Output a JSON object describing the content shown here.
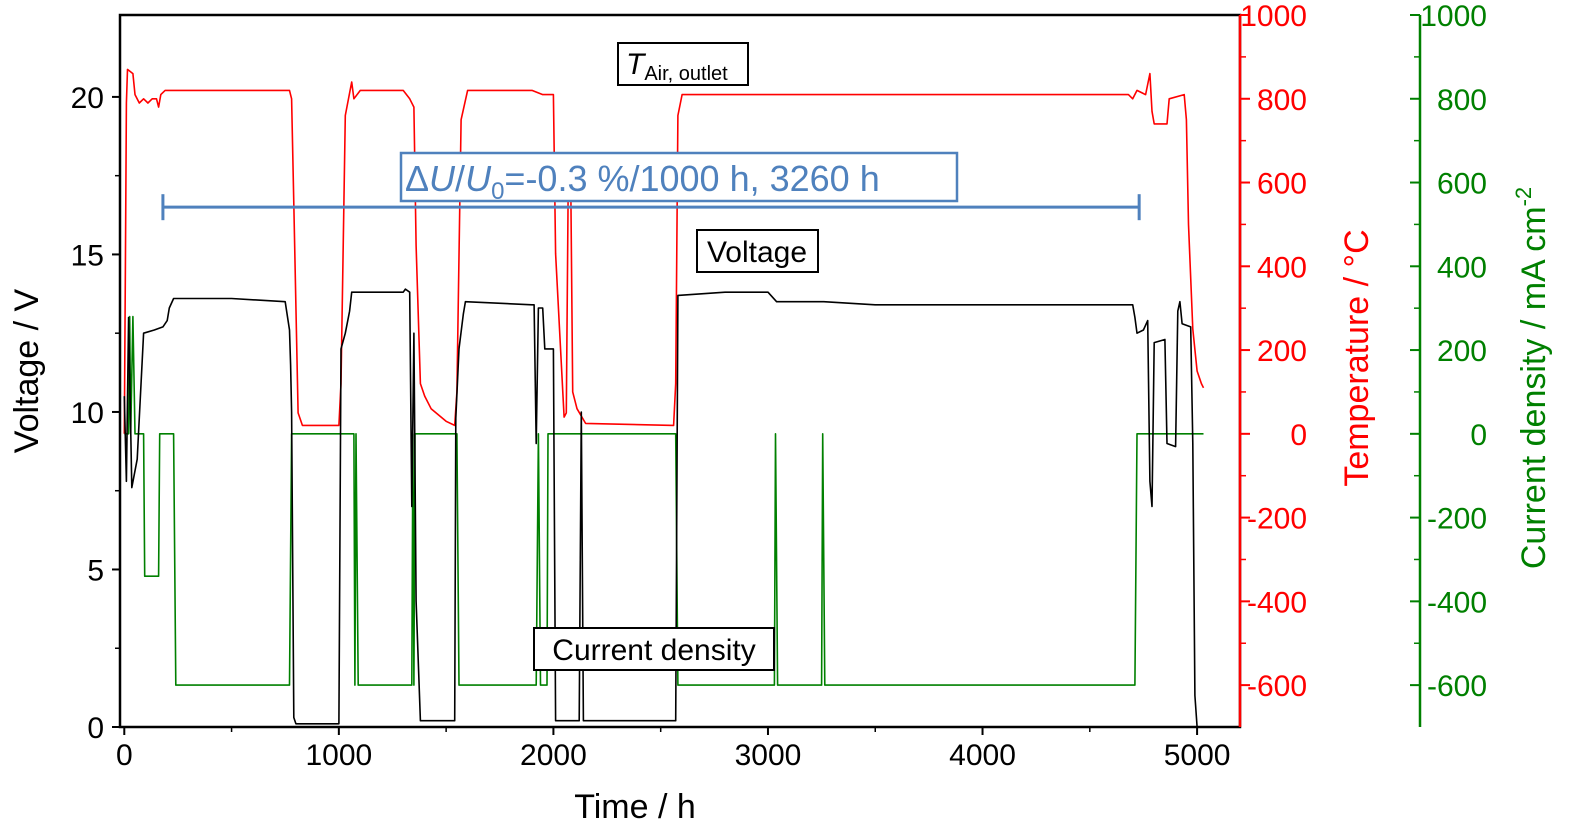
{
  "chart_data": {
    "type": "line",
    "x_axis": {
      "label": "Time / h",
      "range": [
        -20,
        5200
      ],
      "ticks": [
        0,
        1000,
        2000,
        3000,
        4000,
        5000
      ]
    },
    "y_axes": {
      "voltage": {
        "label": "Voltage / V",
        "range": [
          0,
          22.6
        ],
        "ticks": [
          0,
          5,
          10,
          15,
          20
        ],
        "color": "#000000"
      },
      "temperature": {
        "label": "Temperature / °C",
        "range": [
          -700,
          1000
        ],
        "ticks": [
          -600,
          -400,
          -200,
          0,
          200,
          400,
          600,
          800,
          1000
        ],
        "color": "#ff0000"
      },
      "current_density": {
        "label": "Current density / mA cm",
        "label_superscript": "-2",
        "range": [
          -700,
          1000
        ],
        "ticks": [
          -600,
          -400,
          -200,
          0,
          200,
          400,
          600,
          800,
          1000
        ],
        "color": "#008000"
      }
    },
    "series": [
      {
        "name": "Voltage",
        "axis": "voltage",
        "color": "#000000",
        "points": [
          [
            0,
            10.5
          ],
          [
            10,
            7.8
          ],
          [
            20,
            13
          ],
          [
            35,
            7.6
          ],
          [
            60,
            8.5
          ],
          [
            90,
            12.5
          ],
          [
            140,
            12.6
          ],
          [
            180,
            12.7
          ],
          [
            200,
            12.9
          ],
          [
            210,
            13.3
          ],
          [
            230,
            13.6
          ],
          [
            500,
            13.6
          ],
          [
            750,
            13.5
          ],
          [
            770,
            12.6
          ],
          [
            775,
            11.5
          ],
          [
            780,
            10
          ],
          [
            790,
            0.3
          ],
          [
            800,
            0.1
          ],
          [
            1000,
            0.1
          ],
          [
            1010,
            12
          ],
          [
            1030,
            12.5
          ],
          [
            1050,
            13.2
          ],
          [
            1060,
            13.8
          ],
          [
            1300,
            13.8
          ],
          [
            1310,
            13.9
          ],
          [
            1330,
            13.8
          ],
          [
            1340,
            7
          ],
          [
            1350,
            12.5
          ],
          [
            1360,
            4
          ],
          [
            1380,
            0.2
          ],
          [
            1540,
            0.2
          ],
          [
            1545,
            9.8
          ],
          [
            1560,
            12
          ],
          [
            1580,
            13.1
          ],
          [
            1590,
            13.5
          ],
          [
            1900,
            13.4
          ],
          [
            1910,
            13.4
          ],
          [
            1920,
            9
          ],
          [
            1930,
            13.3
          ],
          [
            1950,
            13.3
          ],
          [
            1960,
            12
          ],
          [
            2000,
            12
          ],
          [
            2010,
            0.2
          ],
          [
            2120,
            0.2
          ],
          [
            2130,
            10
          ],
          [
            2140,
            0.2
          ],
          [
            2570,
            0.2
          ],
          [
            2580,
            13.7
          ],
          [
            2800,
            13.8
          ],
          [
            3000,
            13.8
          ],
          [
            3040,
            13.5
          ],
          [
            3260,
            13.5
          ],
          [
            3500,
            13.4
          ],
          [
            4000,
            13.4
          ],
          [
            4700,
            13.4
          ],
          [
            4710,
            13
          ],
          [
            4720,
            12.5
          ],
          [
            4750,
            12.6
          ],
          [
            4770,
            12.9
          ],
          [
            4780,
            7.8
          ],
          [
            4790,
            7
          ],
          [
            4800,
            12.2
          ],
          [
            4850,
            12.3
          ],
          [
            4860,
            9
          ],
          [
            4900,
            8.9
          ],
          [
            4910,
            13.2
          ],
          [
            4920,
            13.5
          ],
          [
            4930,
            12.8
          ],
          [
            4970,
            12.7
          ],
          [
            4980,
            9
          ],
          [
            4990,
            1
          ],
          [
            5000,
            0
          ]
        ]
      },
      {
        "name": "T Air, outlet",
        "axis": "temperature",
        "color": "#ff0000",
        "points": [
          [
            0,
            0
          ],
          [
            5,
            400
          ],
          [
            10,
            790
          ],
          [
            15,
            870
          ],
          [
            40,
            860
          ],
          [
            50,
            810
          ],
          [
            70,
            790
          ],
          [
            90,
            800
          ],
          [
            110,
            790
          ],
          [
            130,
            800
          ],
          [
            150,
            800
          ],
          [
            160,
            780
          ],
          [
            170,
            810
          ],
          [
            190,
            820
          ],
          [
            250,
            820
          ],
          [
            500,
            820
          ],
          [
            770,
            820
          ],
          [
            780,
            800
          ],
          [
            790,
            550
          ],
          [
            810,
            50
          ],
          [
            830,
            20
          ],
          [
            1000,
            20
          ],
          [
            1010,
            120
          ],
          [
            1030,
            760
          ],
          [
            1060,
            840
          ],
          [
            1070,
            800
          ],
          [
            1100,
            820
          ],
          [
            1300,
            820
          ],
          [
            1330,
            800
          ],
          [
            1350,
            780
          ],
          [
            1360,
            450
          ],
          [
            1380,
            120
          ],
          [
            1400,
            90
          ],
          [
            1430,
            60
          ],
          [
            1500,
            30
          ],
          [
            1540,
            20
          ],
          [
            1550,
            100
          ],
          [
            1570,
            750
          ],
          [
            1600,
            820
          ],
          [
            1900,
            820
          ],
          [
            1950,
            810
          ],
          [
            2000,
            810
          ],
          [
            2010,
            430
          ],
          [
            2050,
            40
          ],
          [
            2060,
            50
          ],
          [
            2070,
            650
          ],
          [
            2080,
            640
          ],
          [
            2090,
            100
          ],
          [
            2110,
            60
          ],
          [
            2150,
            25
          ],
          [
            2560,
            20
          ],
          [
            2570,
            120
          ],
          [
            2580,
            760
          ],
          [
            2600,
            810
          ],
          [
            3000,
            810
          ],
          [
            3260,
            810
          ],
          [
            4000,
            810
          ],
          [
            4680,
            810
          ],
          [
            4700,
            800
          ],
          [
            4720,
            820
          ],
          [
            4760,
            810
          ],
          [
            4780,
            860
          ],
          [
            4790,
            770
          ],
          [
            4800,
            740
          ],
          [
            4860,
            740
          ],
          [
            4870,
            800
          ],
          [
            4940,
            810
          ],
          [
            4950,
            750
          ],
          [
            4960,
            500
          ],
          [
            4980,
            250
          ],
          [
            5000,
            150
          ],
          [
            5020,
            120
          ],
          [
            5030,
            110
          ]
        ]
      },
      {
        "name": "Current density",
        "axis": "current_density",
        "color": "#008000",
        "points": [
          [
            0,
            0
          ],
          [
            20,
            0
          ],
          [
            25,
            280
          ],
          [
            30,
            0
          ],
          [
            40,
            280
          ],
          [
            50,
            0
          ],
          [
            90,
            0
          ],
          [
            95,
            -340
          ],
          [
            160,
            -340
          ],
          [
            165,
            0
          ],
          [
            230,
            0
          ],
          [
            240,
            -600
          ],
          [
            770,
            -600
          ],
          [
            780,
            0
          ],
          [
            1010,
            0
          ],
          [
            1070,
            0
          ],
          [
            1075,
            -600
          ],
          [
            1080,
            0
          ],
          [
            1090,
            -600
          ],
          [
            1340,
            -600
          ],
          [
            1345,
            0
          ],
          [
            1350,
            -600
          ],
          [
            1355,
            0
          ],
          [
            1550,
            0
          ],
          [
            1560,
            -600
          ],
          [
            1920,
            -600
          ],
          [
            1930,
            0
          ],
          [
            1940,
            -600
          ],
          [
            1970,
            -600
          ],
          [
            1975,
            0
          ],
          [
            2570,
            0
          ],
          [
            2580,
            -600
          ],
          [
            3030,
            -600
          ],
          [
            3035,
            0
          ],
          [
            3045,
            -600
          ],
          [
            3250,
            -600
          ],
          [
            3255,
            0
          ],
          [
            3265,
            -600
          ],
          [
            4710,
            -600
          ],
          [
            4720,
            0
          ],
          [
            5030,
            0
          ]
        ]
      }
    ],
    "annotations": [
      {
        "id": "temperature-label",
        "text": "T",
        "subscript": "Air, outlet"
      },
      {
        "id": "degradation-label",
        "text_parts": [
          "Δ",
          "U",
          "/",
          "U",
          "0",
          "=-0.3 %/1000 h, 3260 h"
        ],
        "color": "#4f81bd",
        "range_x": [
          180,
          4730
        ],
        "y_voltage": 16.5
      },
      {
        "id": "voltage-label",
        "text": "Voltage"
      },
      {
        "id": "current-density-label",
        "text": "Current density"
      }
    ]
  }
}
